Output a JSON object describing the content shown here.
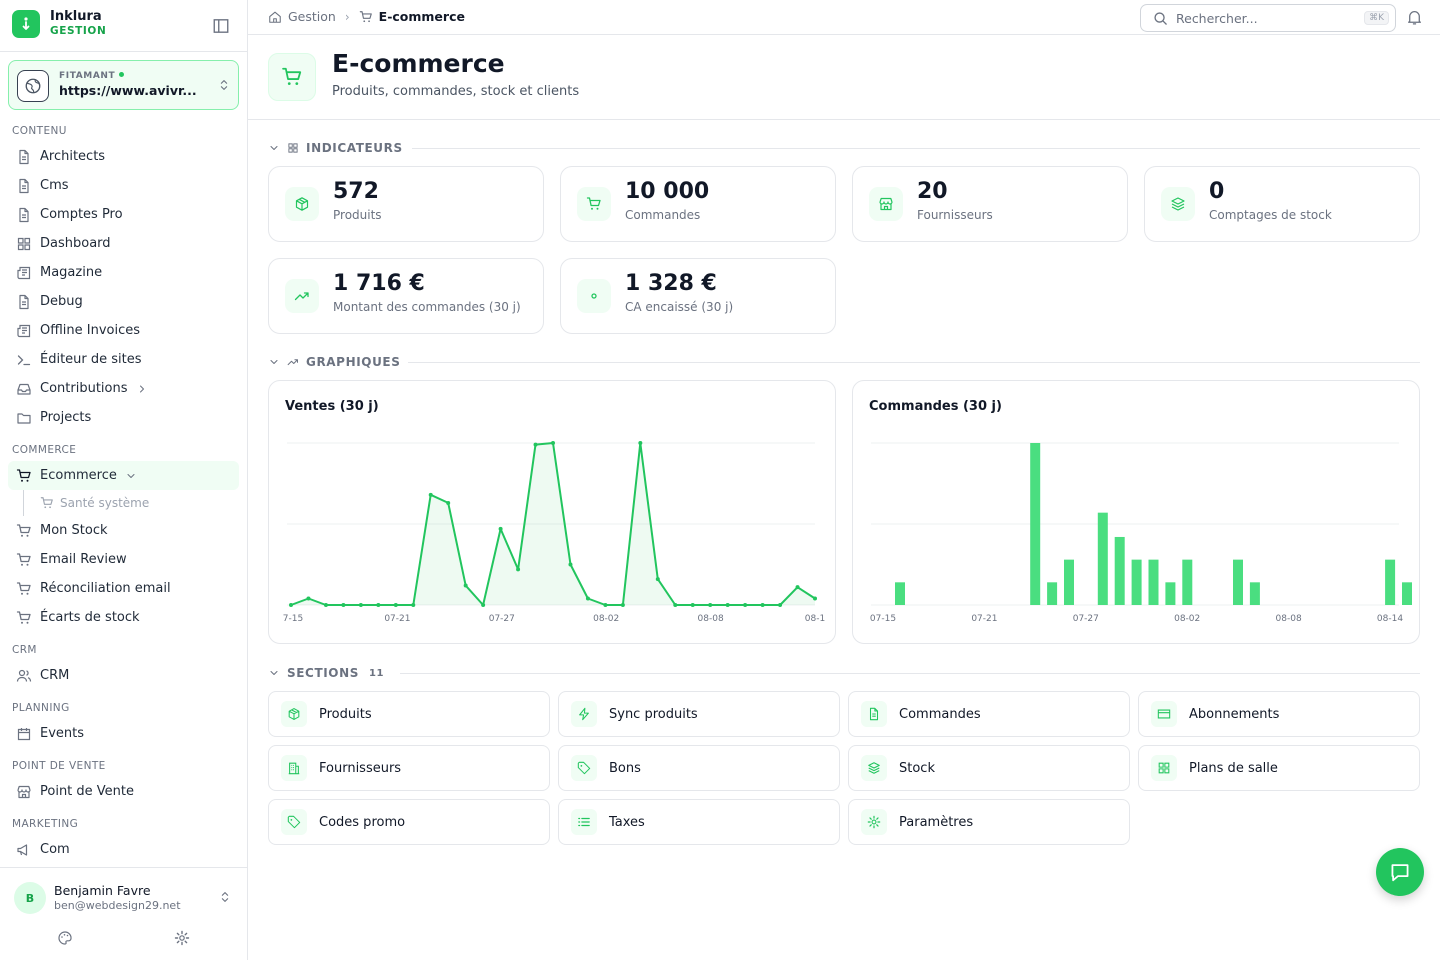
{
  "brand": {
    "name": "Inklura",
    "sub": "GESTION"
  },
  "site": {
    "status_label": "FITAMANT",
    "url": "https://www.avivr..."
  },
  "nav": {
    "sections": {
      "contenu": "CONTENU",
      "commerce": "COMMERCE",
      "crm": "CRM",
      "planning": "PLANNING",
      "pos": "POINT DE VENTE",
      "marketing": "MARKETING"
    },
    "contenu": [
      "Architects",
      "Cms",
      "Comptes Pro",
      "Dashboard",
      "Magazine",
      "Debug",
      "Offline Invoices",
      "Éditeur de sites",
      "Contributions",
      "Projects"
    ],
    "commerce_active": "Ecommerce",
    "commerce_sub": "Santé système",
    "commerce": [
      "Mon Stock",
      "Email Review",
      "Réconciliation email",
      "Écarts de stock"
    ],
    "crm": [
      "CRM"
    ],
    "planning": [
      "Events"
    ],
    "pos": [
      "Point de Vente"
    ],
    "marketing": [
      "Com"
    ]
  },
  "user": {
    "initial": "B",
    "name": "Benjamin Favre",
    "email": "ben@webdesign29.net"
  },
  "breadcrumb": {
    "root": "Gestion",
    "current": "E-commerce"
  },
  "search": {
    "placeholder": "Rechercher...",
    "shortcut": "⌘K"
  },
  "header": {
    "title": "E-commerce",
    "subtitle": "Produits, commandes, stock et clients"
  },
  "indicators": {
    "label": "INDICATEURS",
    "cards": [
      {
        "value": "572",
        "label": "Produits",
        "icon": "package-icon"
      },
      {
        "value": "10 000",
        "label": "Commandes",
        "icon": "cart-icon"
      },
      {
        "value": "20",
        "label": "Fournisseurs",
        "icon": "store-icon"
      },
      {
        "value": "0",
        "label": "Comptages de stock",
        "icon": "layers-icon"
      },
      {
        "value": "1 716 €",
        "label": "Montant des commandes (30 j)",
        "icon": "trending-up-icon"
      },
      {
        "value": "1 328 €",
        "label": "CA encaissé (30 j)",
        "icon": "dot-icon"
      }
    ]
  },
  "charts_section": {
    "label": "GRAPHIQUES"
  },
  "chart_data": [
    {
      "type": "area",
      "title": "Ventes (30 j)",
      "x": [
        "07-15",
        "07-16",
        "07-17",
        "07-18",
        "07-19",
        "07-20",
        "07-21",
        "07-22",
        "07-23",
        "07-24",
        "07-25",
        "07-26",
        "07-27",
        "07-28",
        "07-29",
        "07-30",
        "07-31",
        "08-01",
        "08-02",
        "08-03",
        "08-04",
        "08-05",
        "08-06",
        "08-07",
        "08-08",
        "08-09",
        "08-10",
        "08-11",
        "08-12",
        "08-13",
        "08-14"
      ],
      "tick_labels": [
        "7-15",
        "07-21",
        "07-27",
        "08-02",
        "08-08",
        "08-1"
      ],
      "values": [
        0,
        4,
        0,
        0,
        0,
        0,
        0,
        0,
        68,
        63,
        12,
        0,
        47,
        22,
        99,
        100,
        25,
        4,
        0,
        0,
        100,
        16,
        0,
        0,
        0,
        0,
        0,
        0,
        0,
        11,
        4
      ],
      "ylim": [
        0,
        100
      ],
      "grid": true,
      "color": "#22c55e"
    },
    {
      "type": "bar",
      "title": "Commandes (30 j)",
      "x": [
        "07-15",
        "07-16",
        "07-17",
        "07-18",
        "07-19",
        "07-20",
        "07-21",
        "07-22",
        "07-23",
        "07-24",
        "07-25",
        "07-26",
        "07-27",
        "07-28",
        "07-29",
        "07-30",
        "07-31",
        "08-01",
        "08-02",
        "08-03",
        "08-04",
        "08-05",
        "08-06",
        "08-07",
        "08-08",
        "08-09",
        "08-10",
        "08-11",
        "08-12",
        "08-13",
        "08-14"
      ],
      "tick_labels": [
        "07-15",
        "07-21",
        "07-27",
        "08-02",
        "08-08",
        "08-14"
      ],
      "values": [
        14,
        0,
        0,
        0,
        0,
        0,
        0,
        0,
        100,
        14,
        28,
        0,
        57,
        42,
        28,
        28,
        14,
        28,
        0,
        0,
        28,
        14,
        0,
        0,
        0,
        0,
        0,
        0,
        0,
        28,
        14
      ],
      "ylim": [
        0,
        100
      ],
      "grid": true,
      "color": "#4ade80"
    }
  ],
  "sections": {
    "label": "SECTIONS",
    "count": "11",
    "items": [
      {
        "label": "Produits",
        "icon": "package-icon"
      },
      {
        "label": "Sync produits",
        "icon": "zap-icon"
      },
      {
        "label": "Commandes",
        "icon": "file-text-icon"
      },
      {
        "label": "Abonnements",
        "icon": "credit-card-icon"
      },
      {
        "label": "Fournisseurs",
        "icon": "building-icon"
      },
      {
        "label": "Bons",
        "icon": "tag-icon"
      },
      {
        "label": "Stock",
        "icon": "layers-icon"
      },
      {
        "label": "Plans de salle",
        "icon": "grid-icon"
      },
      {
        "label": "Codes promo",
        "icon": "tag-icon"
      },
      {
        "label": "Taxes",
        "icon": "list-icon"
      },
      {
        "label": "Paramètres",
        "icon": "gear-icon"
      }
    ]
  }
}
